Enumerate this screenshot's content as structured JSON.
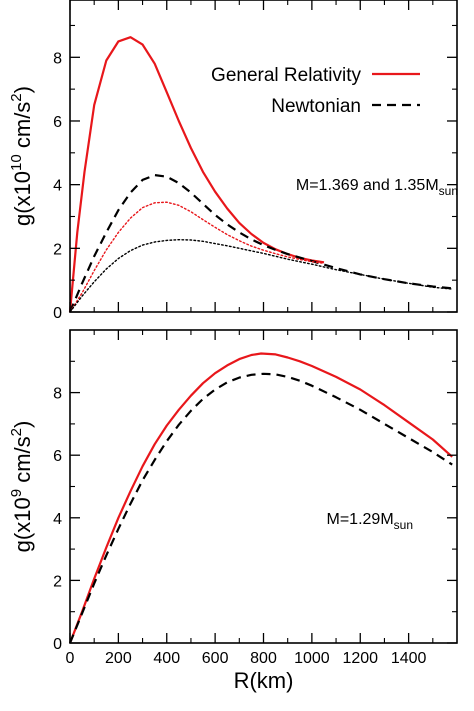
{
  "chart_data": [
    {
      "type": "line",
      "xlabel": "",
      "ylabel": {
        "base": "g(x10",
        "exp": "10",
        "unit": " cm/s",
        "unit_exp": "2",
        "close": ")"
      },
      "xlim": [
        0,
        1600
      ],
      "ylim": [
        0,
        9.8
      ],
      "xticks": [
        0,
        200,
        400,
        600,
        800,
        1000,
        1200,
        1400
      ],
      "yticks": [
        0,
        2,
        4,
        6,
        8
      ],
      "ytick_labels": [
        "0",
        "2",
        "4",
        "6",
        "8"
      ],
      "legend": {
        "placement": "top-right",
        "entries": [
          "General Relativity",
          "Newtonian"
        ]
      },
      "annotation": {
        "main": "M=1.369 and 1.35M",
        "sub": "sun"
      },
      "series": [
        {
          "name": "General Relativity",
          "color": "#e8171b",
          "style": "solid",
          "x": [
            0,
            30,
            60,
            100,
            150,
            200,
            250,
            300,
            350,
            400,
            450,
            500,
            550,
            600,
            650,
            700,
            750,
            800,
            850,
            900,
            950,
            1000,
            1050
          ],
          "y": [
            0,
            2.5,
            4.4,
            6.5,
            7.9,
            8.5,
            8.63,
            8.4,
            7.8,
            6.9,
            6.0,
            5.15,
            4.4,
            3.78,
            3.25,
            2.8,
            2.45,
            2.17,
            1.97,
            1.82,
            1.7,
            1.62,
            1.56
          ]
        },
        {
          "name": "Newtonian",
          "color": "#000000",
          "style": "dashed",
          "x": [
            0,
            50,
            100,
            150,
            200,
            250,
            300,
            350,
            400,
            450,
            500,
            550,
            600,
            650,
            700,
            750,
            800,
            850,
            900,
            1000,
            1100,
            1200,
            1300,
            1400,
            1500,
            1580
          ],
          "y": [
            0,
            0.9,
            1.75,
            2.5,
            3.2,
            3.75,
            4.15,
            4.3,
            4.25,
            4.05,
            3.75,
            3.4,
            3.05,
            2.75,
            2.5,
            2.28,
            2.1,
            1.95,
            1.82,
            1.6,
            1.38,
            1.18,
            1.03,
            0.9,
            0.8,
            0.74
          ]
        },
        {
          "name": "",
          "color": "#e8171b",
          "style": "dotted",
          "x": [
            0,
            50,
            100,
            150,
            200,
            250,
            300,
            350,
            400,
            450,
            500,
            550,
            600,
            650,
            700,
            750,
            800,
            850,
            900,
            950,
            1000,
            1050
          ],
          "y": [
            0,
            0.6,
            1.3,
            1.95,
            2.5,
            2.95,
            3.28,
            3.43,
            3.45,
            3.35,
            3.15,
            2.9,
            2.66,
            2.43,
            2.24,
            2.07,
            1.94,
            1.83,
            1.73,
            1.65,
            1.58,
            1.53
          ]
        },
        {
          "name": "",
          "color": "#000000",
          "style": "dotted",
          "x": [
            0,
            50,
            100,
            150,
            200,
            250,
            300,
            350,
            400,
            450,
            500,
            550,
            600,
            650,
            700,
            750,
            800,
            900,
            1000,
            1100,
            1200,
            1300,
            1400,
            1500,
            1580
          ],
          "y": [
            0,
            0.5,
            0.95,
            1.35,
            1.68,
            1.93,
            2.1,
            2.2,
            2.25,
            2.27,
            2.26,
            2.22,
            2.15,
            2.08,
            2.0,
            1.92,
            1.84,
            1.66,
            1.5,
            1.33,
            1.18,
            1.03,
            0.9,
            0.78,
            0.72
          ]
        }
      ]
    },
    {
      "type": "line",
      "xlabel": "R(km)",
      "ylabel": {
        "base": "g(x10",
        "exp": "9",
        "unit": " cm/s",
        "unit_exp": "2",
        "close": ")"
      },
      "xlim": [
        0,
        1600
      ],
      "ylim": [
        0,
        10
      ],
      "xticks": [
        0,
        200,
        400,
        600,
        800,
        1000,
        1200,
        1400
      ],
      "xtick_labels": [
        "0",
        "200",
        "400",
        "600",
        "800",
        "1000",
        "1200",
        "1400"
      ],
      "yticks": [
        0,
        2,
        4,
        6,
        8
      ],
      "ytick_labels": [
        "0",
        "2",
        "4",
        "6",
        "8"
      ],
      "annotation": {
        "main": "M=1.29M",
        "sub": "sun"
      },
      "series": [
        {
          "name": "General Relativity",
          "color": "#e8171b",
          "style": "solid",
          "x": [
            0,
            50,
            100,
            150,
            200,
            250,
            300,
            350,
            400,
            450,
            500,
            550,
            600,
            650,
            700,
            750,
            790,
            850,
            900,
            950,
            1000,
            1100,
            1200,
            1300,
            1400,
            1500,
            1580
          ],
          "y": [
            0,
            1.0,
            2.05,
            3.05,
            4.0,
            4.85,
            5.65,
            6.35,
            6.95,
            7.45,
            7.9,
            8.3,
            8.62,
            8.87,
            9.07,
            9.2,
            9.25,
            9.22,
            9.12,
            9.0,
            8.85,
            8.5,
            8.1,
            7.6,
            7.05,
            6.5,
            5.95
          ]
        },
        {
          "name": "Newtonian",
          "color": "#000000",
          "style": "dashed",
          "x": [
            0,
            50,
            100,
            150,
            200,
            250,
            300,
            350,
            400,
            450,
            500,
            550,
            600,
            650,
            700,
            750,
            800,
            850,
            900,
            950,
            1000,
            1100,
            1200,
            1300,
            1400,
            1500,
            1580
          ],
          "y": [
            0,
            0.95,
            1.9,
            2.8,
            3.65,
            4.45,
            5.2,
            5.85,
            6.45,
            6.97,
            7.42,
            7.8,
            8.1,
            8.33,
            8.48,
            8.57,
            8.6,
            8.58,
            8.5,
            8.38,
            8.22,
            7.85,
            7.45,
            7.0,
            6.55,
            6.1,
            5.7
          ]
        }
      ]
    }
  ]
}
